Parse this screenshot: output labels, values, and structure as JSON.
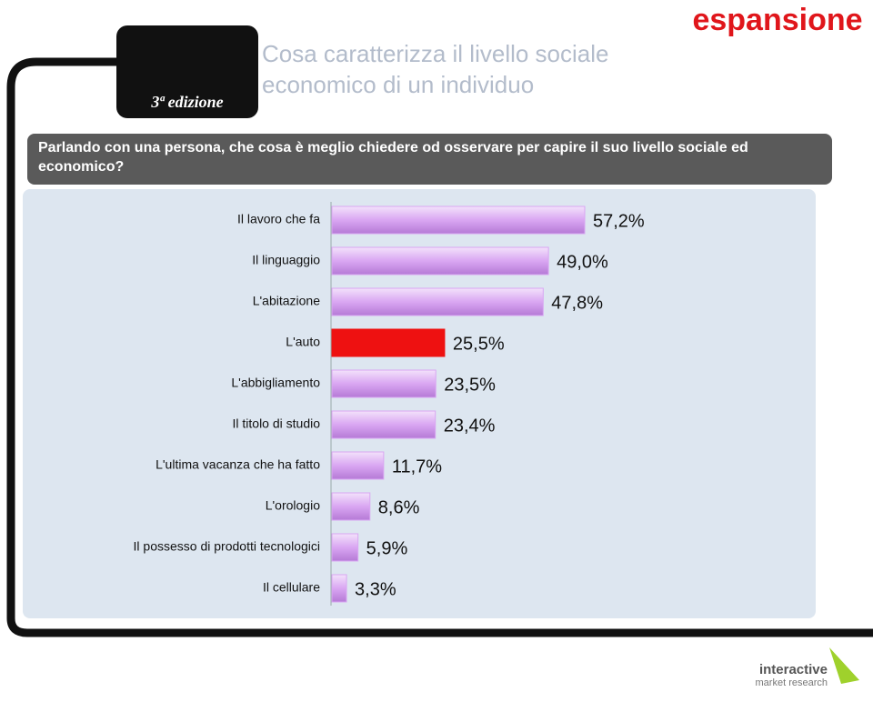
{
  "brand": "espansione",
  "badge": "3ª edizione",
  "footer": {
    "line1": "interactive",
    "line2": "market research"
  },
  "chart_data": {
    "type": "bar",
    "title": "Cosa caratterizza il livello sociale economico di un individuo",
    "subtitle": "Parlando con una persona, che cosa è meglio chiedere od osservare per capire il suo livello sociale ed economico?",
    "categories": [
      "Il lavoro che fa",
      "Il linguaggio",
      "L'abitazione",
      "L'auto",
      "L'abbigliamento",
      "Il titolo di studio",
      "L'ultima vacanza che ha fatto",
      "L'orologio",
      "Il possesso di prodotti tecnologici",
      "Il cellulare"
    ],
    "values": [
      57.2,
      49.0,
      47.8,
      25.5,
      23.5,
      23.4,
      11.7,
      8.6,
      5.9,
      3.3
    ],
    "value_labels": [
      "57,2%",
      "49,0%",
      "47,8%",
      "25,5%",
      "23,5%",
      "23,4%",
      "11,7%",
      "8,6%",
      "5,9%",
      "3,3%"
    ],
    "colors": [
      "#d9a6f2",
      "#d9a6f2",
      "#d9a6f2",
      "#ee1111",
      "#d9a6f2",
      "#d9a6f2",
      "#d9a6f2",
      "#d9a6f2",
      "#d9a6f2",
      "#d9a6f2"
    ]
  }
}
